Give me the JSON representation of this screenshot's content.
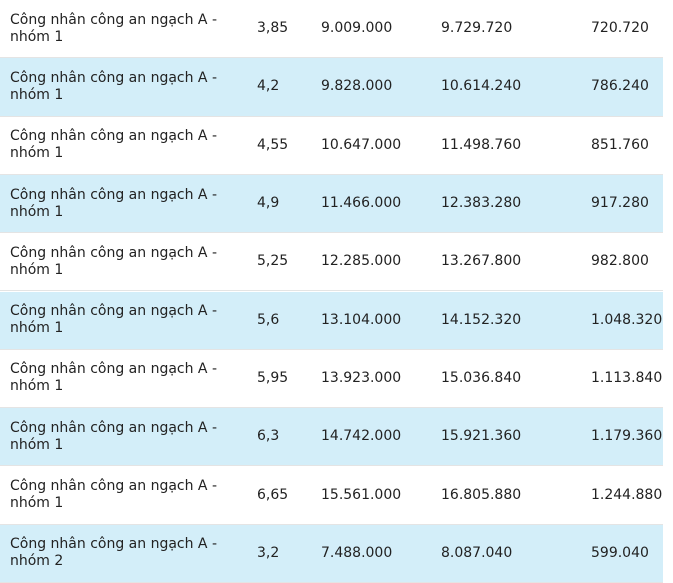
{
  "table": {
    "rows": [
      [
        "Công nhân công an ngạch A - nhóm 1",
        "3,85",
        "9.009.000",
        "9.729.720",
        "720.720"
      ],
      [
        "Công nhân công an ngạch A - nhóm 1",
        "4,2",
        "9.828.000",
        "10.614.240",
        "786.240"
      ],
      [
        "Công nhân công an ngạch A - nhóm 1",
        "4,55",
        "10.647.000",
        "11.498.760",
        "851.760"
      ],
      [
        "Công nhân công an ngạch A - nhóm 1",
        "4,9",
        "11.466.000",
        "12.383.280",
        "917.280"
      ],
      [
        "Công nhân công an ngạch A - nhóm 1",
        "5,25",
        "12.285.000",
        "13.267.800",
        "982.800"
      ],
      [
        "Công nhân công an ngạch A - nhóm 1",
        "5,6",
        "13.104.000",
        "14.152.320",
        "1.048.320"
      ],
      [
        "Công nhân công an ngạch A - nhóm 1",
        "5,95",
        "13.923.000",
        "15.036.840",
        "1.113.840"
      ],
      [
        "Công nhân công an ngạch A - nhóm 1",
        "6,3",
        "14.742.000",
        "15.921.360",
        "1.179.360"
      ],
      [
        "Công nhân công an ngạch A - nhóm 1",
        "6,65",
        "15.561.000",
        "16.805.880",
        "1.244.880"
      ],
      [
        "Công nhân công an ngạch A - nhóm 2",
        "3,2",
        "7.488.000",
        "8.087.040",
        "599.040"
      ]
    ]
  }
}
